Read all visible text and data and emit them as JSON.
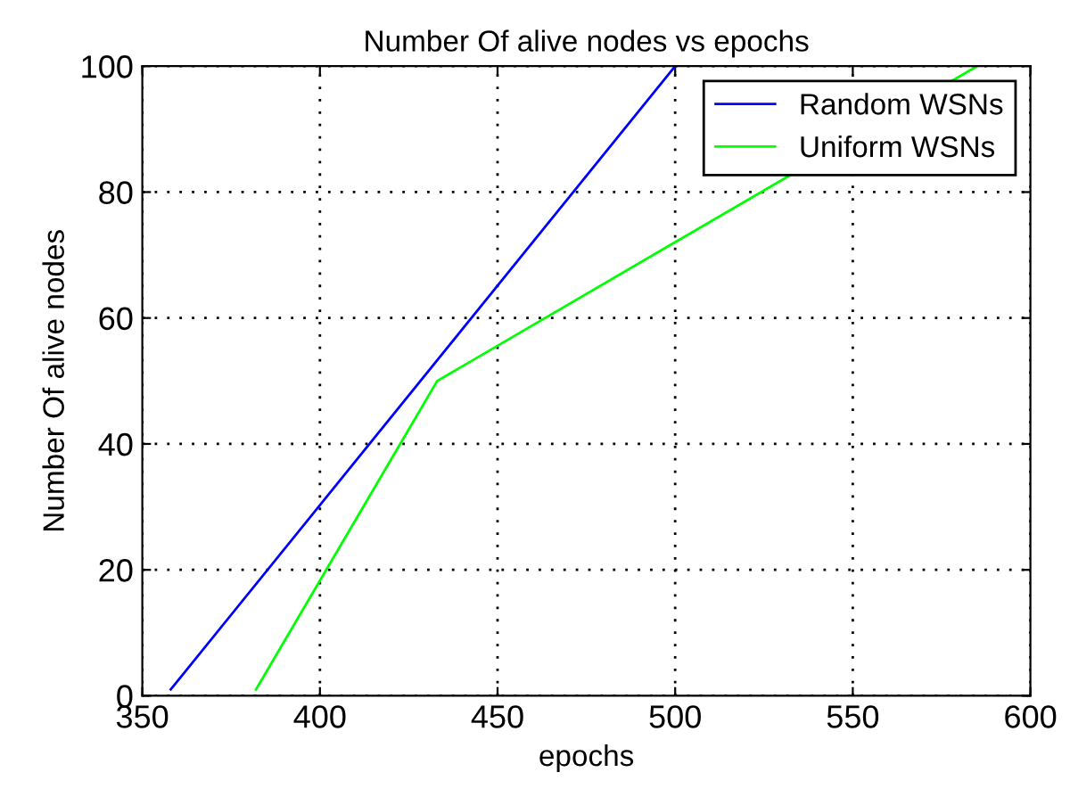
{
  "chart_data": {
    "type": "line",
    "title": "Number Of alive nodes vs epochs",
    "xlabel": "epochs",
    "ylabel": "Number Of alive nodes",
    "xlim": [
      350,
      600
    ],
    "xticks": [
      350,
      400,
      450,
      500,
      550,
      600
    ],
    "ylim": [
      0,
      100
    ],
    "yticks": [
      0,
      20,
      40,
      60,
      80,
      100
    ],
    "grid": true,
    "legend": "top right",
    "marker": "none",
    "line_style": "solid",
    "series": [
      {
        "name": "Random WSNs",
        "color": "#0000ff",
        "x": [
          358,
          500
        ],
        "values": [
          1,
          100
        ]
      },
      {
        "name": "Uniform WSNs",
        "color": "#00ff00",
        "x": [
          382,
          433,
          585
        ],
        "values": [
          1,
          50,
          100
        ]
      }
    ]
  }
}
